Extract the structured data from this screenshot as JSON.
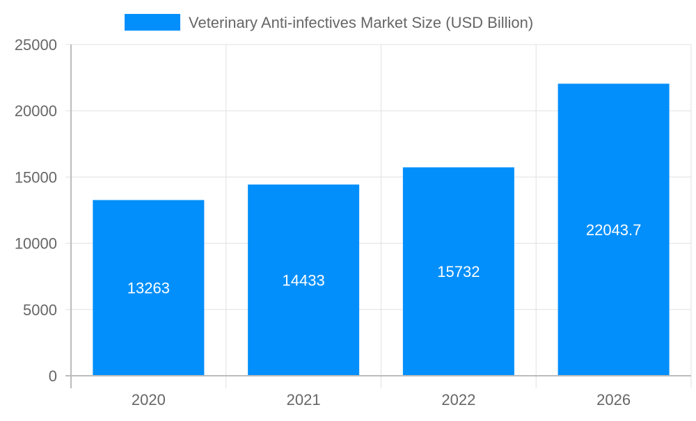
{
  "chart_data": {
    "type": "bar",
    "categories": [
      "2020",
      "2021",
      "2022",
      "2026"
    ],
    "series": [
      {
        "name": "Veterinary Anti-infectives Market Size (USD Billion)",
        "values": [
          13263,
          14433,
          15732,
          22043.7
        ],
        "color": "#038ffb"
      }
    ],
    "data_labels": [
      "13263",
      "14433",
      "15732",
      "22043.7"
    ],
    "ylim": [
      0,
      25000
    ],
    "yticks": [
      0,
      5000,
      10000,
      15000,
      20000,
      25000
    ],
    "ytick_labels": [
      "0",
      "5000",
      "10000",
      "15000",
      "20000",
      "25000"
    ],
    "grid": true,
    "legend_position": "top"
  }
}
